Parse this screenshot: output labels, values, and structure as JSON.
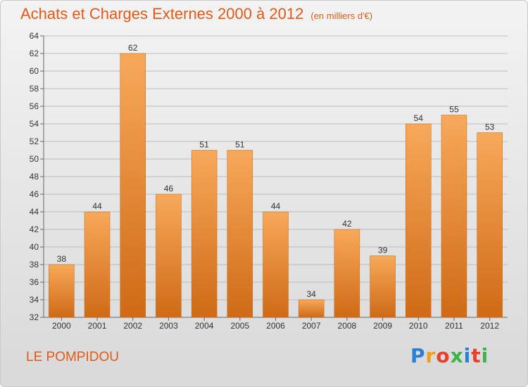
{
  "title": "Achats et Charges Externes 2000 à 2012",
  "subtitle": "(en milliers d'€)",
  "commune": "LE POMPIDOU",
  "logo": {
    "letters": [
      "P",
      "r",
      "o",
      "x",
      "i",
      "t",
      "i"
    ],
    "colors": [
      "#2b7fd4",
      "#f0a020",
      "#e8402a",
      "#3db34a",
      "#2b7fd4",
      "#e8402a",
      "#3db34a"
    ]
  },
  "colors": {
    "bar_light": "#f7a95a",
    "bar_dark": "#cf6a16",
    "text": "#333333",
    "accent": "#e05a18"
  },
  "chart_data": {
    "type": "bar",
    "title": "Achats et Charges Externes 2000 à 2012",
    "subtitle": "(en milliers d'€)",
    "categories": [
      "2000",
      "2001",
      "2002",
      "2003",
      "2004",
      "2005",
      "2006",
      "2007",
      "2008",
      "2009",
      "2010",
      "2011",
      "2012"
    ],
    "values": [
      38,
      44,
      62,
      46,
      51,
      51,
      44,
      34,
      42,
      39,
      54,
      55,
      53
    ],
    "ylim": [
      32,
      64
    ],
    "yticks": [
      32,
      34,
      36,
      38,
      40,
      42,
      44,
      46,
      48,
      50,
      52,
      54,
      56,
      58,
      60,
      62,
      64
    ],
    "grid": true,
    "legend": "none"
  }
}
